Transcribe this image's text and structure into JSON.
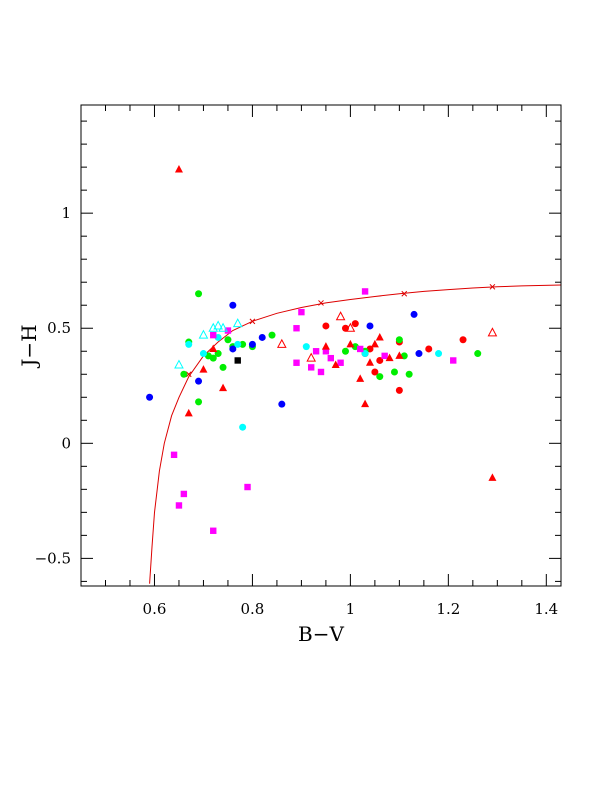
{
  "chart_data": {
    "type": "scatter",
    "xlabel": "B−V",
    "ylabel": "J−H",
    "xlim": [
      0.45,
      1.43
    ],
    "ylim": [
      -0.62,
      1.47
    ],
    "x_ticks": [
      {
        "value": 0.6,
        "label": "0.6"
      },
      {
        "value": 0.8,
        "label": "0.8"
      },
      {
        "value": 1.0,
        "label": "1"
      },
      {
        "value": 1.2,
        "label": "1.2"
      },
      {
        "value": 1.4,
        "label": "1.4"
      }
    ],
    "y_ticks": [
      {
        "value": -0.5,
        "label": "−0.5"
      },
      {
        "value": 0.0,
        "label": "0"
      },
      {
        "value": 0.5,
        "label": "0.5"
      },
      {
        "value": 1.0,
        "label": "1"
      }
    ],
    "grid": false,
    "curve": {
      "color": "#dd0000",
      "points": [
        [
          0.59,
          -0.61
        ],
        [
          0.595,
          -0.45
        ],
        [
          0.6,
          -0.3
        ],
        [
          0.61,
          -0.12
        ],
        [
          0.62,
          0.0
        ],
        [
          0.635,
          0.12
        ],
        [
          0.65,
          0.2
        ],
        [
          0.67,
          0.29
        ],
        [
          0.7,
          0.38
        ],
        [
          0.73,
          0.44
        ],
        [
          0.76,
          0.49
        ],
        [
          0.8,
          0.53
        ],
        [
          0.85,
          0.565
        ],
        [
          0.9,
          0.59
        ],
        [
          0.95,
          0.61
        ],
        [
          1.0,
          0.625
        ],
        [
          1.05,
          0.638
        ],
        [
          1.1,
          0.65
        ],
        [
          1.15,
          0.66
        ],
        [
          1.2,
          0.668
        ],
        [
          1.25,
          0.675
        ],
        [
          1.3,
          0.68
        ],
        [
          1.35,
          0.684
        ],
        [
          1.43,
          0.688
        ]
      ],
      "cross_markers": [
        [
          0.67,
          0.3
        ],
        [
          0.8,
          0.53
        ],
        [
          0.94,
          0.61
        ],
        [
          1.11,
          0.65
        ],
        [
          1.29,
          0.68
        ]
      ]
    },
    "series": [
      {
        "marker": "circle",
        "color": "#ff0000",
        "points": [
          [
            0.95,
            0.51
          ],
          [
            0.99,
            0.5
          ],
          [
            1.01,
            0.52
          ],
          [
            1.03,
            0.39
          ],
          [
            1.04,
            0.41
          ],
          [
            1.05,
            0.31
          ],
          [
            1.06,
            0.36
          ],
          [
            1.1,
            0.23
          ],
          [
            1.16,
            0.41
          ],
          [
            1.23,
            0.45
          ],
          [
            1.1,
            0.44
          ]
        ]
      },
      {
        "marker": "circle",
        "color": "#00ee00",
        "points": [
          [
            0.66,
            0.3
          ],
          [
            0.67,
            0.44
          ],
          [
            0.69,
            0.65
          ],
          [
            0.69,
            0.18
          ],
          [
            0.71,
            0.38
          ],
          [
            0.72,
            0.37
          ],
          [
            0.73,
            0.39
          ],
          [
            0.74,
            0.33
          ],
          [
            0.75,
            0.45
          ],
          [
            0.76,
            0.42
          ],
          [
            0.78,
            0.43
          ],
          [
            0.8,
            0.42
          ],
          [
            0.84,
            0.47
          ],
          [
            0.99,
            0.4
          ],
          [
            1.01,
            0.42
          ],
          [
            1.03,
            0.4
          ],
          [
            1.06,
            0.29
          ],
          [
            1.09,
            0.31
          ],
          [
            1.1,
            0.45
          ],
          [
            1.11,
            0.38
          ],
          [
            1.12,
            0.3
          ],
          [
            1.26,
            0.39
          ]
        ]
      },
      {
        "marker": "circle",
        "color": "#0000ff",
        "points": [
          [
            0.59,
            0.2
          ],
          [
            0.69,
            0.27
          ],
          [
            0.76,
            0.6
          ],
          [
            0.76,
            0.41
          ],
          [
            0.8,
            0.43
          ],
          [
            0.82,
            0.46
          ],
          [
            0.86,
            0.17
          ],
          [
            1.04,
            0.51
          ],
          [
            1.13,
            0.56
          ],
          [
            1.14,
            0.39
          ]
        ]
      },
      {
        "marker": "circle",
        "color": "#00ffff",
        "points": [
          [
            0.67,
            0.43
          ],
          [
            0.7,
            0.39
          ],
          [
            0.73,
            0.46
          ],
          [
            0.77,
            0.43
          ],
          [
            0.78,
            0.07
          ],
          [
            0.91,
            0.42
          ],
          [
            1.03,
            0.39
          ],
          [
            1.18,
            0.39
          ]
        ]
      },
      {
        "marker": "square",
        "color": "#ff00ff",
        "points": [
          [
            0.64,
            -0.05
          ],
          [
            0.65,
            -0.27
          ],
          [
            0.66,
            -0.22
          ],
          [
            0.72,
            0.47
          ],
          [
            0.72,
            -0.38
          ],
          [
            0.75,
            0.49
          ],
          [
            0.79,
            -0.19
          ],
          [
            0.89,
            0.35
          ],
          [
            0.89,
            0.5
          ],
          [
            0.9,
            0.57
          ],
          [
            0.92,
            0.33
          ],
          [
            0.93,
            0.4
          ],
          [
            0.94,
            0.31
          ],
          [
            0.95,
            0.4
          ],
          [
            0.96,
            0.37
          ],
          [
            0.98,
            0.35
          ],
          [
            1.02,
            0.41
          ],
          [
            1.03,
            0.66
          ],
          [
            1.07,
            0.38
          ],
          [
            1.21,
            0.36
          ]
        ]
      },
      {
        "marker": "square",
        "color": "#000000",
        "points": [
          [
            0.77,
            0.36
          ]
        ]
      },
      {
        "marker": "triangle",
        "color": "#ff0000",
        "points": [
          [
            0.65,
            1.19
          ],
          [
            0.67,
            0.13
          ],
          [
            0.7,
            0.32
          ],
          [
            0.72,
            0.41
          ],
          [
            0.74,
            0.24
          ],
          [
            0.95,
            0.42
          ],
          [
            0.97,
            0.34
          ],
          [
            1.0,
            0.43
          ],
          [
            1.02,
            0.28
          ],
          [
            1.03,
            0.17
          ],
          [
            1.04,
            0.35
          ],
          [
            1.05,
            0.43
          ],
          [
            1.06,
            0.46
          ],
          [
            1.08,
            0.37
          ],
          [
            1.1,
            0.38
          ],
          [
            1.29,
            -0.15
          ]
        ]
      },
      {
        "marker": "triangle-open",
        "color": "#ff0000",
        "points": [
          [
            0.86,
            0.43
          ],
          [
            0.92,
            0.37
          ],
          [
            0.98,
            0.55
          ],
          [
            1.0,
            0.5
          ],
          [
            1.29,
            0.48
          ]
        ]
      },
      {
        "marker": "triangle-open",
        "color": "#00ffff",
        "points": [
          [
            0.65,
            0.34
          ],
          [
            0.7,
            0.47
          ],
          [
            0.72,
            0.5
          ],
          [
            0.73,
            0.51
          ],
          [
            0.74,
            0.5
          ],
          [
            0.77,
            0.52
          ]
        ]
      }
    ]
  }
}
